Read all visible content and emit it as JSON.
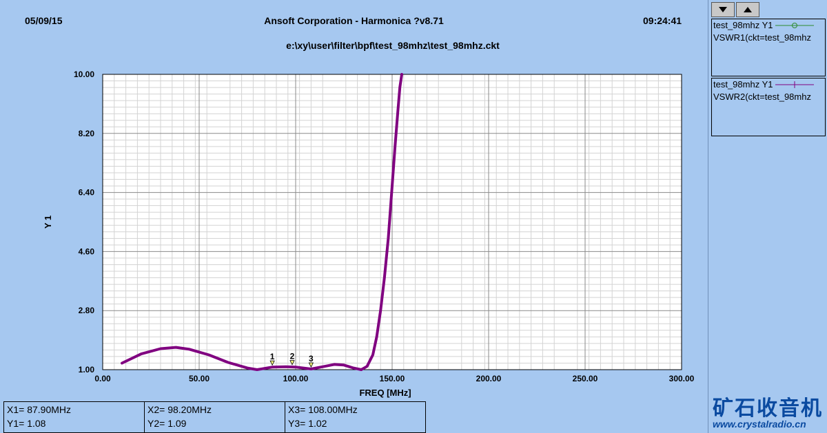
{
  "header": {
    "date": "05/09/15",
    "title": "Ansoft Corporation - Harmonica ?v8.71",
    "time": "09:24:41",
    "file_path": "e:\\xy\\user\\filter\\bpf\\test_98mhz\\test_98mhz.ckt"
  },
  "legend": [
    {
      "line1": "test_98mhz Y1",
      "line2": "VSWR1(ckt=test_98mhz",
      "color": "#2e8b2e",
      "marker": "circle"
    },
    {
      "line1": "test_98mhz Y1",
      "line2": "VSWR2(ckt=test_98mhz",
      "color": "#800080",
      "marker": "tick"
    }
  ],
  "nav": {
    "down_icon": "triangle-down-icon",
    "up_icon": "triangle-up-icon"
  },
  "markers_table": [
    {
      "x": "X1= 87.90MHz",
      "y": "Y1= 1.08"
    },
    {
      "x": "X2= 98.20MHz",
      "y": "Y2= 1.09"
    },
    {
      "x": "X3= 108.00MHz",
      "y": "Y3= 1.02"
    }
  ],
  "logo": {
    "chinese": "矿石收音机",
    "url": "www.crystalradio.cn"
  },
  "chart_data": {
    "type": "line",
    "xlabel": "FREQ [MHz]",
    "ylabel": "Y 1",
    "xlim": [
      0,
      300
    ],
    "ylim": [
      1.0,
      10.0
    ],
    "xticks": [
      "0.00",
      "50.00",
      "100.00",
      "150.00",
      "200.00",
      "250.00",
      "300.00"
    ],
    "yticks": [
      "1.00",
      "2.80",
      "4.60",
      "6.40",
      "8.20",
      "10.00"
    ],
    "grid": true,
    "series": [
      {
        "name": "VSWR2(ckt=test_98mhz",
        "color": "#800080",
        "x": [
          10,
          20,
          30,
          38,
          45,
          55,
          65,
          75,
          80,
          88,
          95,
          100,
          108,
          115,
          120,
          125,
          130,
          134,
          137,
          140,
          142,
          144,
          146,
          148,
          150,
          151.5,
          153,
          154,
          155
        ],
        "y": [
          1.2,
          1.48,
          1.64,
          1.68,
          1.62,
          1.45,
          1.22,
          1.05,
          1.0,
          1.08,
          1.09,
          1.08,
          1.02,
          1.1,
          1.16,
          1.14,
          1.05,
          1.0,
          1.1,
          1.45,
          2.0,
          2.8,
          3.8,
          5.0,
          6.6,
          7.8,
          8.9,
          9.6,
          10.0
        ]
      }
    ],
    "markers": [
      {
        "label": "1",
        "x": 87.9,
        "y": 1.08
      },
      {
        "label": "2",
        "x": 98.2,
        "y": 1.09
      },
      {
        "label": "3",
        "x": 108.0,
        "y": 1.02
      }
    ]
  }
}
